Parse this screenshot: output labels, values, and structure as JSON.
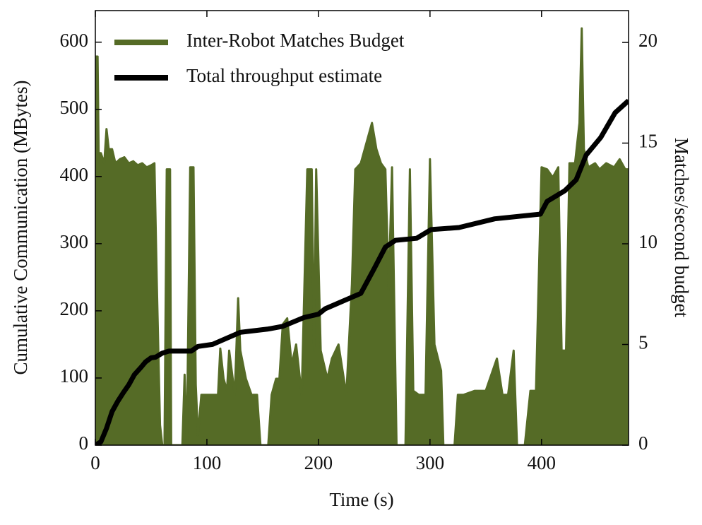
{
  "chart_data": {
    "type": "line",
    "xlabel": "Time (s)",
    "ylabel": "Cumulative Communication (MBytes)",
    "y2label": "Matches/second budget",
    "xlim": [
      0,
      478
    ],
    "xticks": [
      0,
      100,
      200,
      300,
      400
    ],
    "ylim": [
      0,
      647
    ],
    "yticks": [
      0,
      100,
      200,
      300,
      400,
      500,
      600
    ],
    "y2lim": [
      0,
      21.58
    ],
    "y2ticks": [
      0,
      5,
      10,
      15,
      20
    ],
    "legend": "upper left",
    "series": [
      {
        "name": "Inter-Robot Matches Budget",
        "color": "#556b26",
        "axis": "y2",
        "fill": true,
        "x": [
          0,
          2,
          3,
          5,
          8,
          10,
          12,
          15,
          18,
          22,
          26,
          30,
          34,
          38,
          42,
          46,
          50,
          53,
          55,
          58,
          60,
          62,
          64,
          67,
          68,
          78,
          80,
          82,
          85,
          88,
          90,
          92,
          95,
          100,
          105,
          110,
          112,
          115,
          118,
          120,
          125,
          128,
          130,
          135,
          140,
          145,
          148,
          155,
          158,
          162,
          165,
          168,
          172,
          176,
          180,
          185,
          190,
          194,
          196,
          198,
          202,
          205,
          208,
          212,
          218,
          225,
          230,
          233,
          238,
          243,
          248,
          252,
          256,
          260,
          263,
          266,
          270,
          278,
          282,
          285,
          290,
          296,
          300,
          304,
          310,
          312,
          318,
          322,
          325,
          330,
          340,
          350,
          360,
          365,
          370,
          375,
          378,
          385,
          390,
          395,
          400,
          405,
          410,
          415,
          418,
          422,
          425,
          430,
          434,
          436,
          438,
          442,
          448,
          452,
          458,
          465,
          470,
          475,
          478
        ],
        "values": [
          19.3,
          19.3,
          14.5,
          14.5,
          14.0,
          15.7,
          14.7,
          14.7,
          14.0,
          14.2,
          14.3,
          14.0,
          14.1,
          13.9,
          14.0,
          13.8,
          13.9,
          14.0,
          8.3,
          1.0,
          0,
          0,
          13.7,
          13.7,
          0,
          0,
          3.5,
          0,
          13.8,
          13.8,
          3.0,
          0.5,
          2.5,
          2.5,
          2.5,
          2.5,
          4.8,
          3.3,
          2.7,
          4.7,
          2.5,
          7.3,
          4.7,
          3.3,
          2.5,
          2.5,
          0,
          0,
          2.5,
          3.3,
          3.3,
          6.0,
          6.3,
          4.0,
          5.0,
          2.5,
          13.7,
          13.7,
          4.7,
          13.7,
          4.7,
          4.0,
          3.3,
          4.3,
          5.0,
          2.5,
          8.0,
          13.7,
          14.0,
          15.0,
          16.0,
          14.7,
          14.0,
          13.7,
          7.7,
          13.8,
          0,
          0,
          13.7,
          2.7,
          2.5,
          2.5,
          14.2,
          5.0,
          3.7,
          0,
          0,
          0,
          2.5,
          2.5,
          2.7,
          2.7,
          4.3,
          2.5,
          2.5,
          4.7,
          0,
          0,
          2.7,
          2.7,
          13.8,
          13.7,
          13.3,
          13.8,
          4.7,
          4.7,
          14.0,
          14.0,
          16.0,
          20.7,
          14.7,
          13.8,
          14.0,
          13.7,
          14.0,
          13.8,
          14.2,
          13.7,
          13.7
        ]
      },
      {
        "name": "Total throughput estimate",
        "color": "#000000",
        "axis": "y",
        "x": [
          0,
          5,
          10,
          15,
          20,
          25,
          30,
          35,
          41,
          45,
          50,
          54,
          60,
          66,
          86,
          92,
          105,
          130,
          155,
          168,
          187,
          200,
          206,
          231,
          238,
          250,
          260,
          269,
          288,
          301,
          326,
          358,
          399,
          405,
          421,
          431,
          440,
          453,
          466,
          478
        ],
        "values": [
          0,
          5,
          25,
          50,
          65,
          78,
          90,
          105,
          116,
          124,
          130,
          131,
          137,
          140,
          140,
          147,
          150,
          168,
          173,
          177,
          190,
          195,
          203,
          221,
          226,
          263,
          295,
          305,
          308,
          321,
          324,
          337,
          344,
          363,
          379,
          395,
          432,
          458,
          495,
          513
        ]
      }
    ]
  }
}
